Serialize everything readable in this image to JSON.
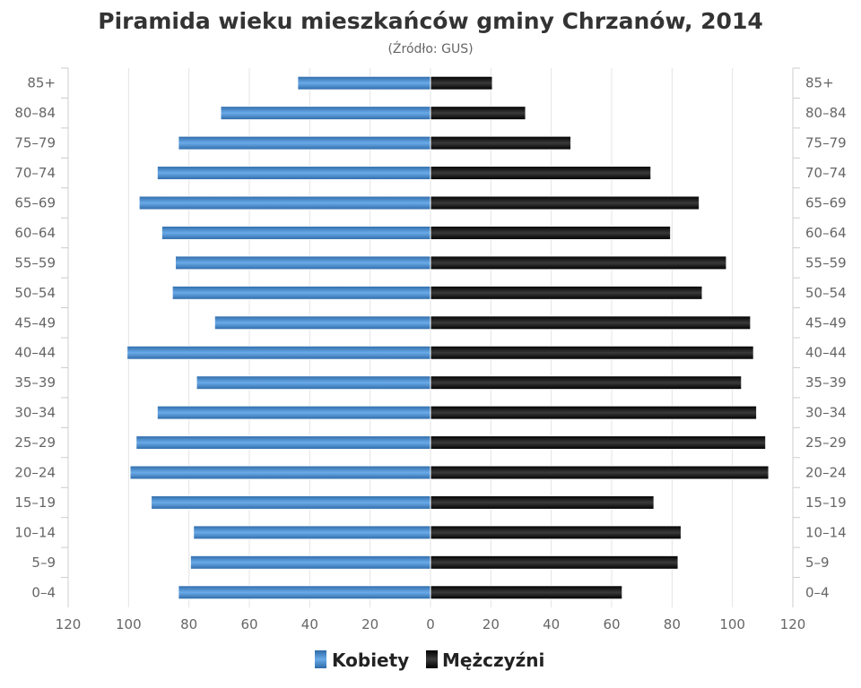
{
  "chart_data": {
    "type": "bar",
    "orientation": "horizontal-pyramid",
    "title": "Piramida wieku mieszkańców gminy Chrzanów, 2014",
    "subtitle": "(Źródło: GUS)",
    "categories": [
      "85+",
      "80-84",
      "75-79",
      "70-74",
      "65-69",
      "60-64",
      "55-59",
      "50-54",
      "45-49",
      "40-44",
      "35-39",
      "30-34",
      "25-29",
      "20-24",
      "15-19",
      "10-14",
      "5-9",
      "0-4"
    ],
    "series": [
      {
        "name": "Kobiety",
        "side": "left",
        "color": "#4a8fd6",
        "values": [
          44,
          69.5,
          83.5,
          90.5,
          96.5,
          89,
          84.5,
          85.5,
          71.5,
          100.5,
          77.5,
          90.5,
          97.5,
          99.5,
          92.5,
          78.5,
          79.5,
          83.5
        ]
      },
      {
        "name": "Mężczyźni",
        "side": "right",
        "color": "#111111",
        "values": [
          20.5,
          31.5,
          46.5,
          73,
          89,
          79.5,
          98,
          90,
          106,
          107,
          103,
          108,
          111,
          112,
          74,
          83,
          82,
          63.5
        ]
      }
    ],
    "x_ticks": [
      "120",
      "100",
      "80",
      "60",
      "40",
      "20",
      "0",
      "20",
      "40",
      "60",
      "80",
      "100",
      "120"
    ],
    "xlim": [
      -120,
      120
    ],
    "legend": "bottom-center",
    "grid": true
  }
}
